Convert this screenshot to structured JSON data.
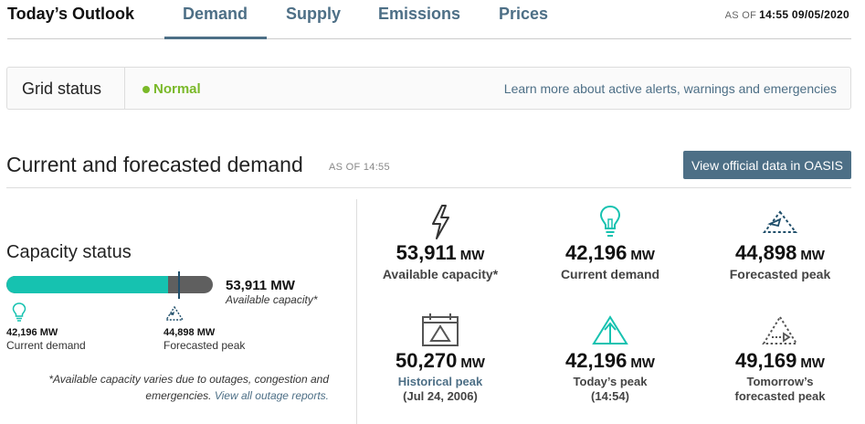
{
  "header": {
    "title": "Today’s Outlook",
    "tabs": [
      {
        "label": "Demand",
        "active": true
      },
      {
        "label": "Supply",
        "active": false
      },
      {
        "label": "Emissions",
        "active": false
      },
      {
        "label": "Prices",
        "active": false
      }
    ],
    "asof_prefix": "AS OF",
    "asof_value": "14:55 09/05/2020"
  },
  "grid_status": {
    "label": "Grid status",
    "value": "Normal",
    "status_color": "#7ab929",
    "link": "Learn more about active alerts, warnings and emergencies"
  },
  "section": {
    "title": "Current and forecasted demand",
    "asof": "AS OF 14:55",
    "button": "View official data in OASIS"
  },
  "capacity": {
    "title": "Capacity status",
    "total_value": "53,911",
    "total_unit": "MW",
    "total_label": "Available capacity*",
    "current_value": "42,196 MW",
    "current_label": "Current demand",
    "forecast_value": "44,898 MW",
    "forecast_label": "Forecasted peak",
    "current_fraction": 0.783,
    "forecast_fraction": 0.833,
    "footnote": "*Available capacity varies due to outages, congestion and emergencies.",
    "footnote_link": "View all outage reports."
  },
  "metrics": [
    {
      "icon": "lightning-icon",
      "value": "53,911",
      "unit": "MW",
      "label": "Available capacity*"
    },
    {
      "icon": "lightbulb-icon",
      "value": "42,196",
      "unit": "MW",
      "label": "Current demand"
    },
    {
      "icon": "forecast-triangle-icon",
      "value": "44,898",
      "unit": "MW",
      "label": "Forecasted peak"
    },
    {
      "icon": "calendar-icon",
      "value": "50,270",
      "unit": "MW",
      "label": "Historical peak",
      "sub": "(Jul 24, 2006)"
    },
    {
      "icon": "peak-arrow-icon",
      "value": "42,196",
      "unit": "MW",
      "label": "Today’s peak",
      "sub": "(14:54)"
    },
    {
      "icon": "tomorrow-triangle-icon",
      "value": "49,169",
      "unit": "MW",
      "label": "Tomorrow’s",
      "sub": "forecasted peak"
    }
  ],
  "colors": {
    "accent": "#4d6f86",
    "bar_fill": "#16c2b0",
    "bar_track": "#5f5f5f",
    "teal_icon": "#16c2b0",
    "navy_icon": "#1f4e6a"
  }
}
